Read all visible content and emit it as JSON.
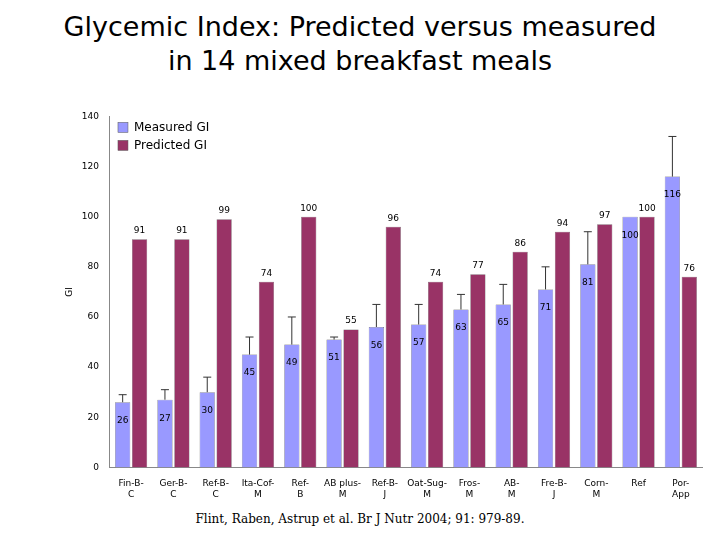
{
  "chart_data": {
    "type": "bar",
    "title": "Glycemic Index: Predicted versus measured in 14 mixed breakfast meals",
    "y_label": "GI",
    "categories": [
      "Fin-B-C",
      "Ger-B-C",
      "Ref-B-C",
      "Ita-Cof-M",
      "Ref-B",
      "AB plus-M",
      "Ref-B-J",
      "Oat-Sug-M",
      "Fros-M",
      "AB-M",
      "Fre-B-J",
      "Corn-M",
      "Ref",
      "Por-App"
    ],
    "series": [
      {
        "name": "Measured GI",
        "color": "#9999ff",
        "values": [
          26,
          27,
          30,
          45,
          49,
          51,
          56,
          57,
          63,
          65,
          71,
          81,
          100,
          116
        ],
        "errors": [
          3,
          4,
          6,
          7,
          11,
          1,
          9,
          8,
          6,
          8,
          9,
          13,
          null,
          16
        ]
      },
      {
        "name": "Predicted GI",
        "color": "#993366",
        "values": [
          91,
          91,
          99,
          74,
          100,
          55,
          96,
          74,
          77,
          86,
          94,
          97,
          100,
          76
        ]
      }
    ],
    "ylim": [
      0,
      140
    ],
    "yticks": [
      0,
      20,
      40,
      60,
      80,
      100,
      120,
      140
    ],
    "grid": false,
    "legend": "upper left",
    "data_labels": true,
    "annotations": [
      "Flint, Raben, Astrup et al. Br J Nutr 2004; 91: 979-89."
    ]
  }
}
